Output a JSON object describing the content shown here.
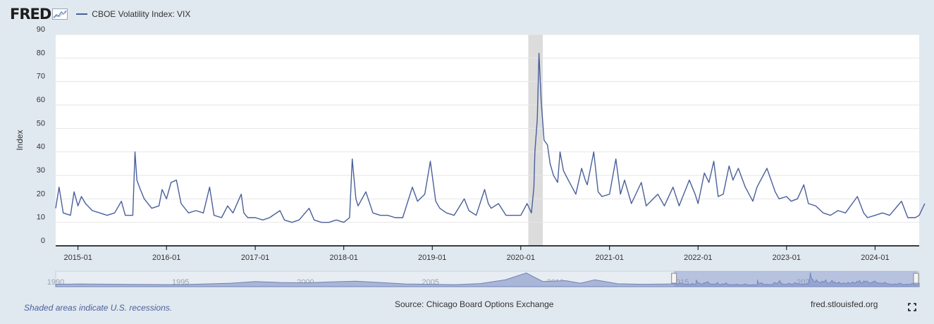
{
  "header": {
    "logo_text": "FRED",
    "series_label": "CBOE Volatility Index: VIX"
  },
  "footer": {
    "recession_note": "Shaded areas indicate U.S. recessions.",
    "source": "Source: Chicago Board Options Exchange",
    "site": "fred.stlouisfed.org"
  },
  "icons": {
    "logo": "fred-line-graph-icon",
    "fullscreen": "fullscreen-icon"
  },
  "colors": {
    "series": "#4a5f9b",
    "recession": "#dcdcdc",
    "background": "#e1e9f0",
    "navigator_selection": "#bcc5e3"
  },
  "chart_data": {
    "type": "line",
    "title": "",
    "xlabel": "",
    "ylabel": "Index",
    "ylim": [
      0,
      90
    ],
    "yticks": [
      0,
      10,
      20,
      30,
      40,
      50,
      60,
      70,
      80,
      90
    ],
    "xlim": [
      "2014-10",
      "2024-07"
    ],
    "xticks": [
      "2015-01",
      "2016-01",
      "2017-01",
      "2018-01",
      "2019-01",
      "2020-01",
      "2021-01",
      "2022-01",
      "2023-01",
      "2024-01"
    ],
    "grid": true,
    "legend_position": "top-left",
    "recessions": [
      {
        "start": "2020-02",
        "end": "2020-04"
      }
    ],
    "series": [
      {
        "name": "CBOE Volatility Index: VIX",
        "points": [
          [
            "2014-10-01",
            16
          ],
          [
            "2014-10-15",
            25
          ],
          [
            "2014-11-01",
            14
          ],
          [
            "2014-12-01",
            13
          ],
          [
            "2014-12-16",
            23
          ],
          [
            "2015-01-01",
            17
          ],
          [
            "2015-01-15",
            21
          ],
          [
            "2015-02-01",
            18
          ],
          [
            "2015-03-01",
            15
          ],
          [
            "2015-04-01",
            14
          ],
          [
            "2015-05-01",
            13
          ],
          [
            "2015-06-01",
            14
          ],
          [
            "2015-06-29",
            19
          ],
          [
            "2015-07-15",
            13
          ],
          [
            "2015-08-15",
            13
          ],
          [
            "2015-08-24",
            40
          ],
          [
            "2015-09-01",
            28
          ],
          [
            "2015-09-15",
            24
          ],
          [
            "2015-10-01",
            20
          ],
          [
            "2015-11-01",
            16
          ],
          [
            "2015-12-01",
            17
          ],
          [
            "2015-12-14",
            24
          ],
          [
            "2016-01-01",
            20
          ],
          [
            "2016-01-20",
            27
          ],
          [
            "2016-02-11",
            28
          ],
          [
            "2016-03-01",
            18
          ],
          [
            "2016-04-01",
            14
          ],
          [
            "2016-05-01",
            15
          ],
          [
            "2016-06-01",
            14
          ],
          [
            "2016-06-27",
            25
          ],
          [
            "2016-07-15",
            13
          ],
          [
            "2016-08-15",
            12
          ],
          [
            "2016-09-09",
            17
          ],
          [
            "2016-10-01",
            14
          ],
          [
            "2016-11-04",
            22
          ],
          [
            "2016-11-15",
            14
          ],
          [
            "2016-12-01",
            12
          ],
          [
            "2017-01-01",
            12
          ],
          [
            "2017-02-01",
            11
          ],
          [
            "2017-03-01",
            12
          ],
          [
            "2017-04-13",
            15
          ],
          [
            "2017-05-01",
            11
          ],
          [
            "2017-06-01",
            10
          ],
          [
            "2017-07-01",
            11
          ],
          [
            "2017-08-11",
            16
          ],
          [
            "2017-09-01",
            11
          ],
          [
            "2017-10-01",
            10
          ],
          [
            "2017-11-01",
            10
          ],
          [
            "2017-12-01",
            11
          ],
          [
            "2018-01-01",
            10
          ],
          [
            "2018-01-25",
            12
          ],
          [
            "2018-02-05",
            37
          ],
          [
            "2018-02-20",
            20
          ],
          [
            "2018-03-01",
            17
          ],
          [
            "2018-04-02",
            23
          ],
          [
            "2018-05-01",
            14
          ],
          [
            "2018-06-01",
            13
          ],
          [
            "2018-07-01",
            13
          ],
          [
            "2018-08-01",
            12
          ],
          [
            "2018-09-01",
            12
          ],
          [
            "2018-10-11",
            25
          ],
          [
            "2018-11-01",
            19
          ],
          [
            "2018-12-01",
            22
          ],
          [
            "2018-12-24",
            36
          ],
          [
            "2019-01-15",
            19
          ],
          [
            "2019-02-01",
            16
          ],
          [
            "2019-03-01",
            14
          ],
          [
            "2019-04-01",
            13
          ],
          [
            "2019-05-13",
            20
          ],
          [
            "2019-06-01",
            15
          ],
          [
            "2019-07-01",
            13
          ],
          [
            "2019-08-05",
            24
          ],
          [
            "2019-08-20",
            18
          ],
          [
            "2019-09-01",
            16
          ],
          [
            "2019-10-01",
            18
          ],
          [
            "2019-11-01",
            13
          ],
          [
            "2019-12-01",
            13
          ],
          [
            "2020-01-01",
            13
          ],
          [
            "2020-01-27",
            18
          ],
          [
            "2020-02-14",
            14
          ],
          [
            "2020-02-24",
            25
          ],
          [
            "2020-02-28",
            40
          ],
          [
            "2020-03-09",
            54
          ],
          [
            "2020-03-16",
            82
          ],
          [
            "2020-03-25",
            62
          ],
          [
            "2020-04-06",
            45
          ],
          [
            "2020-04-20",
            43
          ],
          [
            "2020-05-01",
            35
          ],
          [
            "2020-05-15",
            30
          ],
          [
            "2020-06-01",
            27
          ],
          [
            "2020-06-11",
            40
          ],
          [
            "2020-06-25",
            32
          ],
          [
            "2020-07-15",
            28
          ],
          [
            "2020-08-15",
            22
          ],
          [
            "2020-09-08",
            33
          ],
          [
            "2020-09-23",
            28
          ],
          [
            "2020-10-01",
            26
          ],
          [
            "2020-10-28",
            40
          ],
          [
            "2020-11-15",
            23
          ],
          [
            "2020-12-01",
            21
          ],
          [
            "2021-01-01",
            22
          ],
          [
            "2021-01-27",
            37
          ],
          [
            "2021-02-15",
            22
          ],
          [
            "2021-03-04",
            28
          ],
          [
            "2021-04-01",
            18
          ],
          [
            "2021-05-12",
            27
          ],
          [
            "2021-06-01",
            17
          ],
          [
            "2021-07-19",
            22
          ],
          [
            "2021-08-15",
            17
          ],
          [
            "2021-09-20",
            25
          ],
          [
            "2021-10-15",
            17
          ],
          [
            "2021-11-26",
            28
          ],
          [
            "2021-12-20",
            22
          ],
          [
            "2022-01-01",
            18
          ],
          [
            "2022-01-27",
            31
          ],
          [
            "2022-02-15",
            27
          ],
          [
            "2022-03-07",
            36
          ],
          [
            "2022-03-25",
            21
          ],
          [
            "2022-04-15",
            22
          ],
          [
            "2022-05-09",
            34
          ],
          [
            "2022-05-25",
            28
          ],
          [
            "2022-06-16",
            33
          ],
          [
            "2022-07-15",
            25
          ],
          [
            "2022-08-15",
            19
          ],
          [
            "2022-09-01",
            25
          ],
          [
            "2022-10-12",
            33
          ],
          [
            "2022-11-15",
            23
          ],
          [
            "2022-12-01",
            20
          ],
          [
            "2023-01-01",
            21
          ],
          [
            "2023-01-20",
            19
          ],
          [
            "2023-02-15",
            20
          ],
          [
            "2023-03-13",
            26
          ],
          [
            "2023-04-01",
            18
          ],
          [
            "2023-05-01",
            17
          ],
          [
            "2023-06-01",
            14
          ],
          [
            "2023-07-01",
            13
          ],
          [
            "2023-08-01",
            15
          ],
          [
            "2023-09-01",
            14
          ],
          [
            "2023-10-20",
            21
          ],
          [
            "2023-11-15",
            14
          ],
          [
            "2023-12-01",
            12
          ],
          [
            "2024-01-01",
            13
          ],
          [
            "2024-02-01",
            14
          ],
          [
            "2024-03-01",
            13
          ],
          [
            "2024-04-19",
            19
          ],
          [
            "2024-05-15",
            12
          ],
          [
            "2024-06-15",
            12
          ],
          [
            "2024-07-01",
            13
          ],
          [
            "2024-07-24",
            18
          ]
        ]
      }
    ],
    "navigator": {
      "tick_labels": [
        "1990",
        "1995",
        "2000",
        "2005",
        "2010",
        "2015",
        "2020"
      ],
      "range_start": "2014-10",
      "range_end": "2024-07"
    }
  }
}
